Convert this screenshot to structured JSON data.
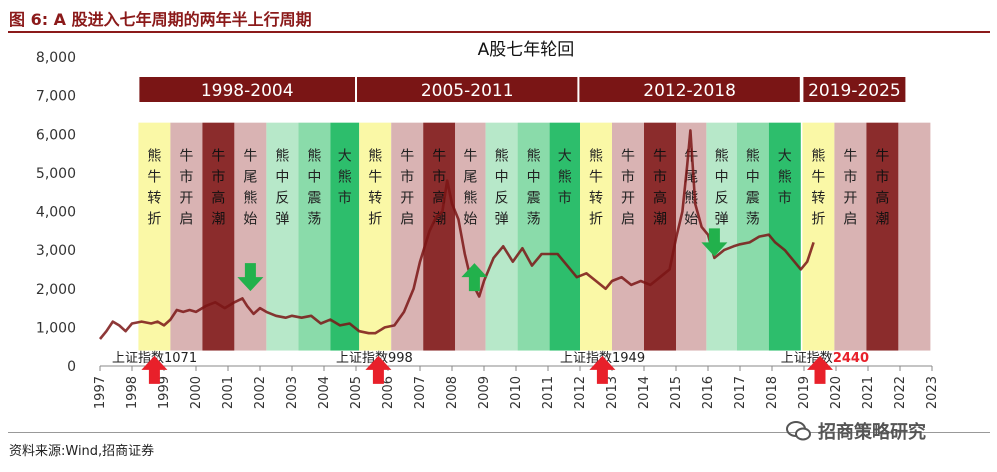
{
  "figure_title": "图 6:  A 股进入七年周期的两年半上行周期",
  "source": "资料来源:Wind,招商证券",
  "watermark": "招商策略研究",
  "colors": {
    "title": "#8B1A1A",
    "period_header": "#7A1515",
    "line": "#7A1515",
    "yellow": "#FAF8A6",
    "pink": "#D9B3B3",
    "maroon": "#8B2C2C",
    "lightgreen": "#B7E8C9",
    "midgreen": "#8ADBAA",
    "green": "#2DBE6C",
    "arrow_red": "#E8202A",
    "arrow_green": "#22B14C",
    "highlight_text": "#E8202A"
  },
  "chart_data": {
    "type": "line",
    "title": "A股七年轮回",
    "xlabel": "",
    "ylabel": "",
    "ylim": [
      0,
      8000
    ],
    "xlim": [
      1997,
      2023
    ],
    "yticks": [
      0,
      1000,
      2000,
      3000,
      4000,
      5000,
      6000,
      7000,
      8000
    ],
    "ytick_labels": [
      "0",
      "1,000",
      "2,000",
      "3,000",
      "4,000",
      "5,000",
      "6,000",
      "7,000",
      "8,000"
    ],
    "xticks": [
      "1997",
      "1998",
      "1999",
      "2000",
      "2001",
      "2002",
      "2003",
      "2004",
      "2005",
      "2006",
      "2007",
      "2008",
      "2009",
      "2010",
      "2011",
      "2012",
      "2013",
      "2014",
      "2015",
      "2016",
      "2017",
      "2018",
      "2019",
      "2020",
      "2021",
      "2022",
      "2023"
    ],
    "grid": false,
    "period_headers": [
      {
        "label": "1998-2004",
        "from": 1998.2,
        "to": 2005.0
      },
      {
        "label": "2005-2011",
        "from": 2005.0,
        "to": 2011.95
      },
      {
        "label": "2012-2018",
        "from": 2011.95,
        "to": 2018.9
      },
      {
        "label": "2019-2025",
        "from": 2018.95,
        "to": 2022.2
      }
    ],
    "phases": [
      {
        "label": "熊牛转折",
        "from": 1998.2,
        "to": 1999.2,
        "color": "yellow"
      },
      {
        "label": "牛市开启",
        "from": 1999.2,
        "to": 2000.2,
        "color": "pink"
      },
      {
        "label": "牛市高潮",
        "from": 2000.2,
        "to": 2001.2,
        "color": "maroon"
      },
      {
        "label": "牛尾熊始",
        "from": 2001.2,
        "to": 2002.2,
        "color": "pink"
      },
      {
        "label": "熊中反弹",
        "from": 2002.2,
        "to": 2003.2,
        "color": "lightgreen"
      },
      {
        "label": "熊中震荡",
        "from": 2003.2,
        "to": 2004.2,
        "color": "midgreen"
      },
      {
        "label": "大熊市",
        "from": 2004.2,
        "to": 2005.1,
        "color": "green"
      },
      {
        "label": "熊牛转折",
        "from": 2005.1,
        "to": 2006.1,
        "color": "yellow"
      },
      {
        "label": "牛市开启",
        "from": 2006.1,
        "to": 2007.1,
        "color": "pink"
      },
      {
        "label": "牛市高潮",
        "from": 2007.1,
        "to": 2008.1,
        "color": "maroon"
      },
      {
        "label": "牛尾熊始",
        "from": 2008.1,
        "to": 2009.05,
        "color": "pink"
      },
      {
        "label": "熊中反弹",
        "from": 2009.05,
        "to": 2010.05,
        "color": "lightgreen"
      },
      {
        "label": "熊中震荡",
        "from": 2010.05,
        "to": 2011.05,
        "color": "midgreen"
      },
      {
        "label": "大熊市",
        "from": 2011.05,
        "to": 2012.0,
        "color": "green"
      },
      {
        "label": "熊牛转折",
        "from": 2012.0,
        "to": 2013.0,
        "color": "yellow"
      },
      {
        "label": "牛市开启",
        "from": 2013.0,
        "to": 2014.0,
        "color": "pink"
      },
      {
        "label": "牛市高潮",
        "from": 2014.0,
        "to": 2015.0,
        "color": "maroon"
      },
      {
        "label": "牛尾熊始",
        "from": 2015.0,
        "to": 2015.95,
        "color": "pink"
      },
      {
        "label": "熊中反弹",
        "from": 2015.95,
        "to": 2016.9,
        "color": "lightgreen"
      },
      {
        "label": "熊中震荡",
        "from": 2016.9,
        "to": 2017.9,
        "color": "midgreen"
      },
      {
        "label": "大熊市",
        "from": 2017.9,
        "to": 2018.9,
        "color": "green"
      },
      {
        "label": "熊牛转折",
        "from": 2018.95,
        "to": 2019.95,
        "color": "yellow"
      },
      {
        "label": "牛市开启",
        "from": 2019.95,
        "to": 2020.95,
        "color": "pink"
      },
      {
        "label": "牛市高潮",
        "from": 2020.95,
        "to": 2021.95,
        "color": "maroon"
      },
      {
        "label": "",
        "from": 2021.95,
        "to": 2022.95,
        "color": "pink"
      }
    ],
    "annotations": [
      {
        "text": "上证指数",
        "value": "1071",
        "x": 1998.0,
        "highlight": false
      },
      {
        "text": "上证指数",
        "value": "998",
        "x": 2005.0,
        "highlight": false
      },
      {
        "text": "上证指数",
        "value": "1949",
        "x": 2012.0,
        "highlight": false
      },
      {
        "text": "上证指数",
        "value": "2440",
        "x": 2018.9,
        "highlight": true
      }
    ],
    "arrows": [
      {
        "direction": "up",
        "color": "arrow_red",
        "x": 1998.7,
        "y": -100
      },
      {
        "direction": "up",
        "color": "arrow_red",
        "x": 2005.7,
        "y": -100
      },
      {
        "direction": "up",
        "color": "arrow_red",
        "x": 2012.7,
        "y": -100
      },
      {
        "direction": "up",
        "color": "arrow_red",
        "x": 2019.5,
        "y": -100
      },
      {
        "direction": "down",
        "color": "arrow_green",
        "x": 2001.7,
        "y": 2300
      },
      {
        "direction": "up",
        "color": "arrow_green",
        "x": 2008.7,
        "y": 2300
      },
      {
        "direction": "down",
        "color": "arrow_green",
        "x": 2016.2,
        "y": 3200
      }
    ],
    "series": [
      {
        "x": [
          1997.0,
          1997.2,
          1997.4,
          1997.6,
          1997.8,
          1998.0,
          1998.3,
          1998.6,
          1998.8,
          1999.0,
          1999.2,
          1999.4,
          1999.6,
          1999.8,
          2000.0,
          2000.3,
          2000.6,
          2000.9,
          2001.2,
          2001.45,
          2001.6,
          2001.8,
          2002.0,
          2002.2,
          2002.5,
          2002.8,
          2003.0,
          2003.3,
          2003.6,
          2003.9,
          2004.2,
          2004.5,
          2004.8,
          2005.1,
          2005.4,
          2005.6,
          2005.9,
          2006.2,
          2006.5,
          2006.8,
          2007.0,
          2007.3,
          2007.5,
          2007.7,
          2007.85,
          2008.0,
          2008.2,
          2008.4,
          2008.6,
          2008.85,
          2009.0,
          2009.3,
          2009.6,
          2009.9,
          2010.2,
          2010.5,
          2010.8,
          2011.0,
          2011.3,
          2011.6,
          2011.9,
          2012.2,
          2012.5,
          2012.8,
          2013.0,
          2013.3,
          2013.6,
          2013.9,
          2014.2,
          2014.5,
          2014.8,
          2015.0,
          2015.2,
          2015.35,
          2015.45,
          2015.6,
          2015.8,
          2016.0,
          2016.2,
          2016.5,
          2016.8,
          2017.0,
          2017.3,
          2017.6,
          2017.9,
          2018.1,
          2018.4,
          2018.7,
          2018.9,
          2019.1,
          2019.3
        ],
        "y": [
          700,
          900,
          1150,
          1050,
          900,
          1100,
          1150,
          1100,
          1150,
          1050,
          1200,
          1450,
          1400,
          1450,
          1400,
          1550,
          1650,
          1500,
          1650,
          1750,
          1550,
          1350,
          1500,
          1400,
          1300,
          1250,
          1300,
          1250,
          1300,
          1100,
          1200,
          1050,
          1100,
          900,
          850,
          850,
          1000,
          1050,
          1400,
          2000,
          2700,
          3500,
          3850,
          4000,
          4800,
          4200,
          3800,
          2900,
          2200,
          1800,
          2200,
          2800,
          3100,
          2700,
          3050,
          2600,
          2900,
          2900,
          2900,
          2600,
          2300,
          2400,
          2200,
          2000,
          2200,
          2300,
          2100,
          2200,
          2100,
          2300,
          2500,
          3300,
          4000,
          5200,
          6100,
          4200,
          3600,
          3400,
          2800,
          3000,
          3100,
          3150,
          3200,
          3350,
          3400,
          3200,
          3000,
          2700,
          2500,
          2700,
          3200
        ]
      }
    ]
  }
}
